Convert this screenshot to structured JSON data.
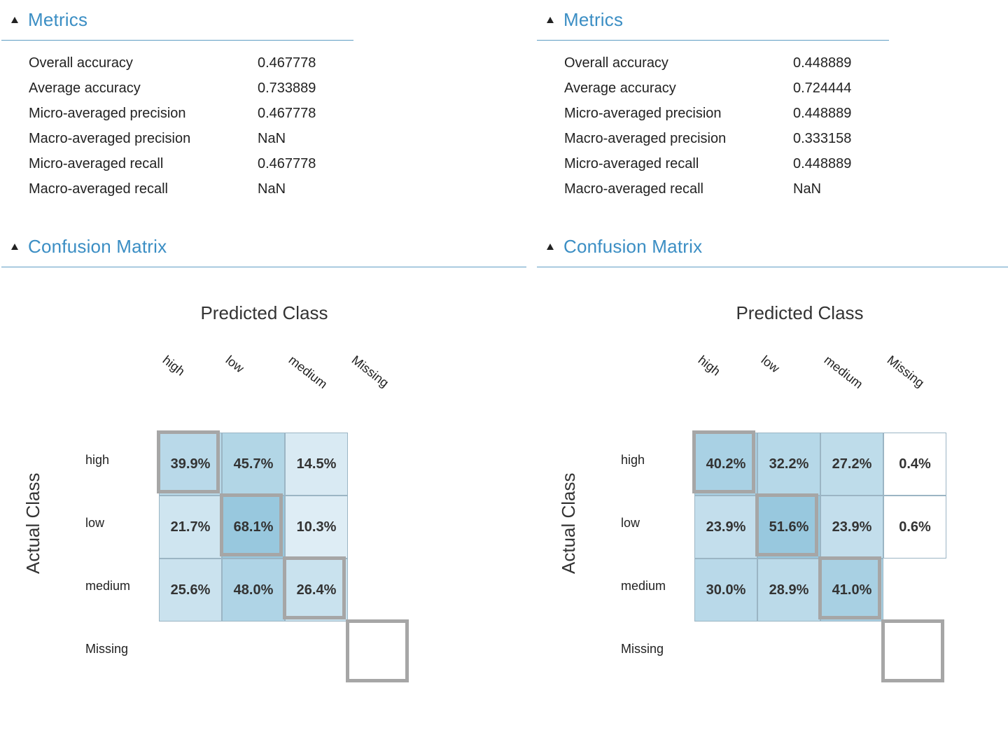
{
  "panels": [
    {
      "metrics_title": "Metrics",
      "metrics": [
        {
          "label": "Overall accuracy",
          "value": "0.467778"
        },
        {
          "label": "Average accuracy",
          "value": "0.733889"
        },
        {
          "label": "Micro-averaged precision",
          "value": "0.467778"
        },
        {
          "label": "Macro-averaged precision",
          "value": "NaN"
        },
        {
          "label": "Micro-averaged recall",
          "value": "0.467778"
        },
        {
          "label": "Macro-averaged recall",
          "value": "NaN"
        }
      ],
      "cm_title": "Confusion Matrix"
    },
    {
      "metrics_title": "Metrics",
      "metrics": [
        {
          "label": "Overall accuracy",
          "value": "0.448889"
        },
        {
          "label": "Average accuracy",
          "value": "0.724444"
        },
        {
          "label": "Micro-averaged precision",
          "value": "0.448889"
        },
        {
          "label": "Macro-averaged precision",
          "value": "0.333158"
        },
        {
          "label": "Micro-averaged recall",
          "value": "0.448889"
        },
        {
          "label": "Macro-averaged recall",
          "value": "NaN"
        }
      ],
      "cm_title": "Confusion Matrix"
    }
  ],
  "chart_data": [
    {
      "type": "heatmap",
      "title": "Predicted Class",
      "ylabel": "Actual Class",
      "columns": [
        "high",
        "low",
        "medium",
        "Missing"
      ],
      "rows": [
        "high",
        "low",
        "medium",
        "Missing"
      ],
      "values": [
        [
          39.9,
          45.7,
          14.5,
          null
        ],
        [
          21.7,
          68.1,
          10.3,
          null
        ],
        [
          25.6,
          48.0,
          26.4,
          null
        ],
        [
          null,
          null,
          null,
          null
        ]
      ],
      "labels": [
        [
          "39.9%",
          "45.7%",
          "14.5%",
          null
        ],
        [
          "21.7%",
          "68.1%",
          "10.3%",
          null
        ],
        [
          "25.6%",
          "48.0%",
          "26.4%",
          null
        ],
        [
          null,
          null,
          null,
          null
        ]
      ]
    },
    {
      "type": "heatmap",
      "title": "Predicted Class",
      "ylabel": "Actual Class",
      "columns": [
        "high",
        "low",
        "medium",
        "Missing"
      ],
      "rows": [
        "high",
        "low",
        "medium",
        "Missing"
      ],
      "values": [
        [
          40.2,
          32.2,
          27.2,
          0.4
        ],
        [
          23.9,
          51.6,
          23.9,
          0.6
        ],
        [
          30.0,
          28.9,
          41.0,
          null
        ],
        [
          null,
          null,
          null,
          null
        ]
      ],
      "labels": [
        [
          "40.2%",
          "32.2%",
          "27.2%",
          "0.4%"
        ],
        [
          "23.9%",
          "51.6%",
          "23.9%",
          "0.6%"
        ],
        [
          "30.0%",
          "28.9%",
          "41.0%",
          null
        ],
        [
          null,
          null,
          null,
          null
        ]
      ]
    }
  ],
  "colors": {
    "accent": "#3b8ec4",
    "rule": "#5f9ec4",
    "cell_low": "#eef5fa",
    "cell_high": "#98c8de",
    "diag_border": "#a6a6a6"
  }
}
